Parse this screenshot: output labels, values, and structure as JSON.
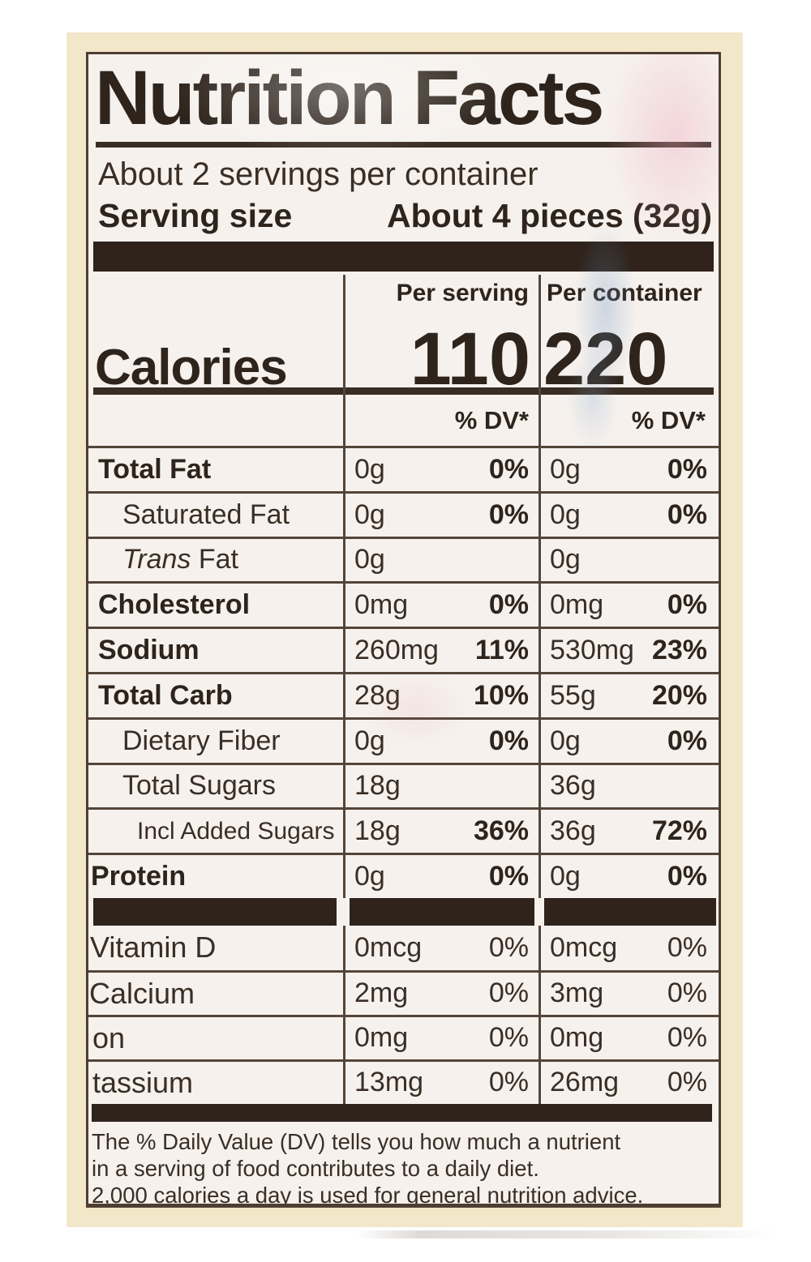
{
  "colors": {
    "packaging_cream": "#f3e7c9",
    "label_background": "#f6f1ed",
    "ink": "#2e241c"
  },
  "label": {
    "title": "Nutrition Facts",
    "servings_line": "About 2 servings per container",
    "serving_size_label": "Serving size",
    "serving_size_value": "About 4 pieces (32g)",
    "calories_word": "Calories",
    "per_serving_header": "Per serving",
    "per_container_header": "Per container",
    "calories_per_serving": "110",
    "calories_per_container": "220",
    "dv_header_serving": "% DV*",
    "dv_header_container": "% DV*",
    "nutrient_rows": [
      {
        "key": "total-fat",
        "name": "Total Fat",
        "style": "main",
        "serving_amount": "0g",
        "serving_dv": "0%",
        "container_amount": "0g",
        "container_dv": "0%"
      },
      {
        "key": "saturated-fat",
        "name": "Saturated Fat",
        "style": "sub",
        "serving_amount": "0g",
        "serving_dv": "0%",
        "container_amount": "0g",
        "container_dv": "0%"
      },
      {
        "key": "trans-fat",
        "name_italic": "Trans",
        "name": " Fat",
        "style": "sub",
        "serving_amount": "0g",
        "serving_dv": "",
        "container_amount": "0g",
        "container_dv": ""
      },
      {
        "key": "cholesterol",
        "name": "Cholesterol",
        "style": "main",
        "serving_amount": "0mg",
        "serving_dv": "0%",
        "container_amount": "0mg",
        "container_dv": "0%"
      },
      {
        "key": "sodium",
        "name": "Sodium",
        "style": "main",
        "serving_amount": "260mg",
        "serving_dv": "11%",
        "container_amount": "530mg",
        "container_dv": "23%"
      },
      {
        "key": "total-carb",
        "name": "Total Carb",
        "style": "main",
        "serving_amount": "28g",
        "serving_dv": "10%",
        "container_amount": "55g",
        "container_dv": "20%"
      },
      {
        "key": "dietary-fiber",
        "name": "Dietary Fiber",
        "style": "sub",
        "serving_amount": "0g",
        "serving_dv": "0%",
        "container_amount": "0g",
        "container_dv": "0%"
      },
      {
        "key": "total-sugars",
        "name": "Total Sugars",
        "style": "sub",
        "serving_amount": "18g",
        "serving_dv": "",
        "container_amount": "36g",
        "container_dv": ""
      },
      {
        "key": "added-sugars",
        "name": "Incl Added Sugars",
        "style": "sub2",
        "serving_amount": "18g",
        "serving_dv": "36%",
        "container_amount": "36g",
        "container_dv": "72%"
      },
      {
        "key": "protein",
        "name": "Protein",
        "style": "main",
        "serving_amount": "0g",
        "serving_dv": "0%",
        "container_amount": "0g",
        "container_dv": "0%"
      }
    ],
    "vitamin_rows": [
      {
        "key": "vitamin-d",
        "name": "Vitamin D",
        "serving_amount": "0mcg",
        "serving_dv": "0%",
        "container_amount": "0mcg",
        "container_dv": "0%"
      },
      {
        "key": "calcium",
        "name": "Calcium",
        "serving_amount": "2mg",
        "serving_dv": "0%",
        "container_amount": "3mg",
        "container_dv": "0%"
      },
      {
        "key": "iron",
        "name": "on",
        "serving_amount": "0mg",
        "serving_dv": "0%",
        "container_amount": "0mg",
        "container_dv": "0%"
      },
      {
        "key": "potassium",
        "name": "tassium",
        "serving_amount": "13mg",
        "serving_dv": "0%",
        "container_amount": "26mg",
        "container_dv": "0%"
      }
    ],
    "footnote_lines": [
      "The % Daily Value (DV) tells you how much a nutrient",
      "in a serving of food contributes to a daily diet.",
      "2,000 calories a day is used for general nutrition advice."
    ]
  }
}
